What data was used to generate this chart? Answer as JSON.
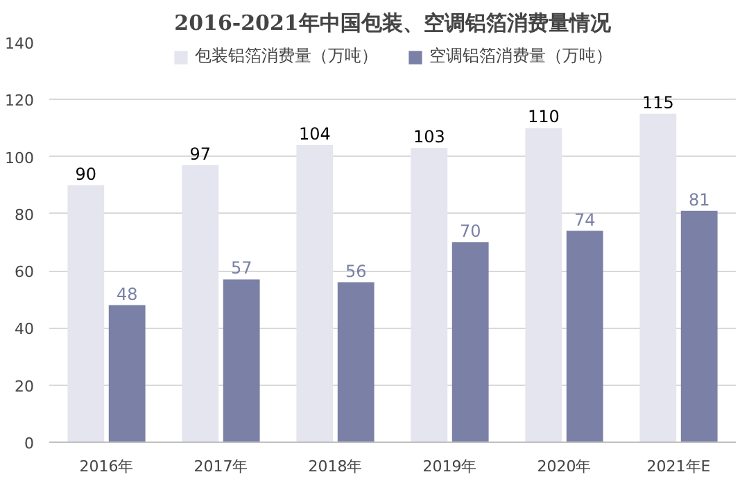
{
  "chart_data": {
    "type": "bar",
    "title": "2016-2021年中国包装、空调铝箔消费量情况",
    "categories": [
      "2016年",
      "2017年",
      "2018年",
      "2019年",
      "2020年",
      "2021年E"
    ],
    "series": [
      {
        "name": "包装铝箔消费量（万吨）",
        "color": "#e4e5ee",
        "values": [
          90,
          97,
          104,
          103,
          110,
          115
        ]
      },
      {
        "name": "空调铝箔消费量（万吨）",
        "color": "#7a80a6",
        "values": [
          48,
          57,
          56,
          70,
          74,
          81
        ]
      }
    ],
    "ylim": [
      0,
      140
    ],
    "yticks": [
      0,
      20,
      40,
      60,
      80,
      100,
      120,
      140
    ],
    "grid": "y",
    "legend": "top",
    "data_labels": true
  }
}
